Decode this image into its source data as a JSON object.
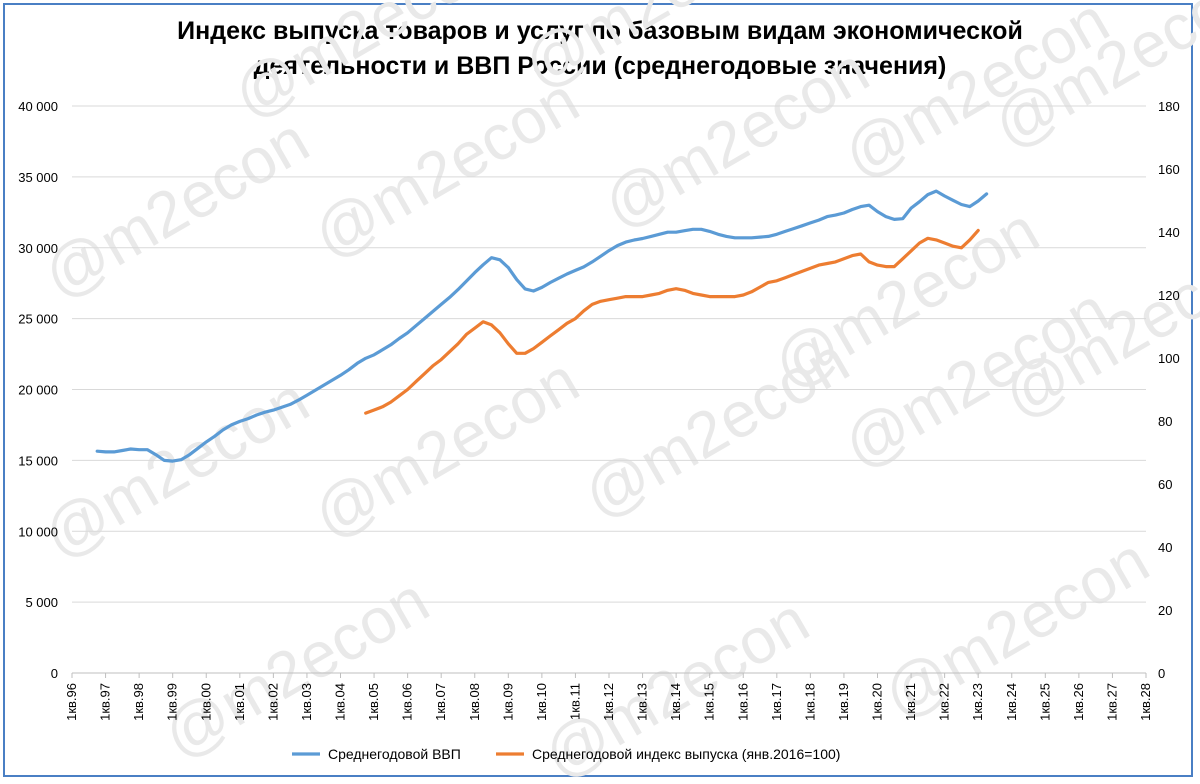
{
  "chart_data": {
    "type": "line",
    "title_line1": "Индекс выпуска товаров и услуг по базовым видам экономической",
    "title_line2": "деятельности и ВВП России (среднегодовые значения)",
    "watermark": "@m2econ",
    "y_left": {
      "ticks": [
        "0",
        "5 000",
        "10 000",
        "15 000",
        "20 000",
        "25 000",
        "30 000",
        "35 000",
        "40 000"
      ],
      "ylim": [
        0,
        40000
      ]
    },
    "y_right": {
      "ticks": [
        "0",
        "20",
        "40",
        "60",
        "80",
        "100",
        "120",
        "140",
        "160",
        "180"
      ],
      "ylim": [
        0,
        180
      ]
    },
    "x_categories": [
      "1кв.96",
      "1кв.97",
      "1кв.98",
      "1кв.99",
      "1кв.00",
      "1кв.01",
      "1кв.02",
      "1кв.03",
      "1кв.04",
      "1кв.05",
      "1кв.06",
      "1кв.07",
      "1кв.08",
      "1кв.09",
      "1кв.10",
      "1кв.11",
      "1кв.12",
      "1кв.13",
      "1кв.14",
      "1кв.15",
      "1кв.16",
      "1кв.17",
      "1кв.18",
      "1кв.19",
      "1кв.20",
      "1кв.21",
      "1кв.22",
      "1кв.23",
      "1кв.24",
      "1кв.25",
      "1кв.26",
      "1кв.27",
      "1кв.28"
    ],
    "grid": true,
    "legend_position": "bottom",
    "series": [
      {
        "name": "Среднегодовой ВВП",
        "axis": "left",
        "color": "#5b9bd5",
        "points": [
          [
            1996.75,
            15650
          ],
          [
            1997.0,
            15600
          ],
          [
            1997.25,
            15600
          ],
          [
            1997.5,
            15700
          ],
          [
            1997.75,
            15800
          ],
          [
            1998.0,
            15750
          ],
          [
            1998.25,
            15750
          ],
          [
            1998.5,
            15400
          ],
          [
            1998.75,
            15000
          ],
          [
            1999.0,
            14950
          ],
          [
            1999.25,
            15050
          ],
          [
            1999.5,
            15400
          ],
          [
            1999.75,
            15850
          ],
          [
            2000.0,
            16300
          ],
          [
            2000.25,
            16700
          ],
          [
            2000.5,
            17150
          ],
          [
            2000.75,
            17500
          ],
          [
            2001.0,
            17750
          ],
          [
            2001.25,
            17950
          ],
          [
            2001.5,
            18200
          ],
          [
            2001.75,
            18400
          ],
          [
            2002.0,
            18550
          ],
          [
            2002.25,
            18750
          ],
          [
            2002.5,
            18950
          ],
          [
            2002.75,
            19250
          ],
          [
            2003.0,
            19600
          ],
          [
            2003.25,
            19950
          ],
          [
            2003.5,
            20300
          ],
          [
            2003.75,
            20650
          ],
          [
            2004.0,
            21000
          ],
          [
            2004.25,
            21400
          ],
          [
            2004.5,
            21850
          ],
          [
            2004.75,
            22200
          ],
          [
            2005.0,
            22450
          ],
          [
            2005.25,
            22800
          ],
          [
            2005.5,
            23150
          ],
          [
            2005.75,
            23600
          ],
          [
            2006.0,
            24000
          ],
          [
            2006.25,
            24500
          ],
          [
            2006.5,
            25000
          ],
          [
            2006.75,
            25500
          ],
          [
            2007.0,
            26000
          ],
          [
            2007.25,
            26500
          ],
          [
            2007.5,
            27050
          ],
          [
            2007.75,
            27650
          ],
          [
            2008.0,
            28250
          ],
          [
            2008.25,
            28800
          ],
          [
            2008.5,
            29300
          ],
          [
            2008.75,
            29150
          ],
          [
            2009.0,
            28600
          ],
          [
            2009.25,
            27750
          ],
          [
            2009.5,
            27100
          ],
          [
            2009.75,
            26950
          ],
          [
            2010.0,
            27200
          ],
          [
            2010.25,
            27550
          ],
          [
            2010.5,
            27850
          ],
          [
            2010.75,
            28150
          ],
          [
            2011.0,
            28400
          ],
          [
            2011.25,
            28650
          ],
          [
            2011.5,
            29000
          ],
          [
            2011.75,
            29400
          ],
          [
            2012.0,
            29800
          ],
          [
            2012.25,
            30150
          ],
          [
            2012.5,
            30400
          ],
          [
            2012.75,
            30550
          ],
          [
            2013.0,
            30650
          ],
          [
            2013.25,
            30800
          ],
          [
            2013.5,
            30950
          ],
          [
            2013.75,
            31100
          ],
          [
            2014.0,
            31100
          ],
          [
            2014.25,
            31200
          ],
          [
            2014.5,
            31300
          ],
          [
            2014.75,
            31300
          ],
          [
            2015.0,
            31150
          ],
          [
            2015.25,
            30950
          ],
          [
            2015.5,
            30800
          ],
          [
            2015.75,
            30700
          ],
          [
            2016.0,
            30700
          ],
          [
            2016.25,
            30700
          ],
          [
            2016.5,
            30750
          ],
          [
            2016.75,
            30800
          ],
          [
            2017.0,
            30950
          ],
          [
            2017.25,
            31150
          ],
          [
            2017.5,
            31350
          ],
          [
            2017.75,
            31550
          ],
          [
            2018.0,
            31750
          ],
          [
            2018.25,
            31950
          ],
          [
            2018.5,
            32200
          ],
          [
            2018.75,
            32300
          ],
          [
            2019.0,
            32450
          ],
          [
            2019.25,
            32700
          ],
          [
            2019.5,
            32900
          ],
          [
            2019.75,
            33000
          ],
          [
            2020.0,
            32550
          ],
          [
            2020.25,
            32200
          ],
          [
            2020.5,
            32000
          ],
          [
            2020.75,
            32050
          ],
          [
            2021.0,
            32800
          ],
          [
            2021.25,
            33250
          ],
          [
            2021.5,
            33750
          ],
          [
            2021.75,
            34000
          ],
          [
            2022.0,
            33650
          ],
          [
            2022.25,
            33350
          ],
          [
            2022.5,
            33050
          ],
          [
            2022.75,
            32900
          ],
          [
            2023.0,
            33300
          ],
          [
            2023.25,
            33800
          ]
        ]
      },
      {
        "name": "Среднегодовой индекс выпуска (янв.2016=100)",
        "axis": "right",
        "color": "#ed7d31",
        "points": [
          [
            2004.75,
            82.5
          ],
          [
            2005.0,
            83.5
          ],
          [
            2005.25,
            84.5
          ],
          [
            2005.5,
            86.0
          ],
          [
            2005.75,
            88.0
          ],
          [
            2006.0,
            90.0
          ],
          [
            2006.25,
            92.5
          ],
          [
            2006.5,
            95.0
          ],
          [
            2006.75,
            97.5
          ],
          [
            2007.0,
            99.5
          ],
          [
            2007.25,
            102.0
          ],
          [
            2007.5,
            104.5
          ],
          [
            2007.75,
            107.5
          ],
          [
            2008.0,
            109.5
          ],
          [
            2008.25,
            111.5
          ],
          [
            2008.5,
            110.5
          ],
          [
            2008.75,
            108.0
          ],
          [
            2009.0,
            104.5
          ],
          [
            2009.25,
            101.5
          ],
          [
            2009.5,
            101.5
          ],
          [
            2009.75,
            103.0
          ],
          [
            2010.0,
            105.0
          ],
          [
            2010.25,
            107.0
          ],
          [
            2010.5,
            109.0
          ],
          [
            2010.75,
            111.0
          ],
          [
            2011.0,
            112.5
          ],
          [
            2011.25,
            115.0
          ],
          [
            2011.5,
            117.0
          ],
          [
            2011.75,
            118.0
          ],
          [
            2012.0,
            118.5
          ],
          [
            2012.25,
            119.0
          ],
          [
            2012.5,
            119.5
          ],
          [
            2012.75,
            119.5
          ],
          [
            2013.0,
            119.5
          ],
          [
            2013.25,
            120.0
          ],
          [
            2013.5,
            120.5
          ],
          [
            2013.75,
            121.5
          ],
          [
            2014.0,
            122.0
          ],
          [
            2014.25,
            121.5
          ],
          [
            2014.5,
            120.5
          ],
          [
            2014.75,
            120.0
          ],
          [
            2015.0,
            119.5
          ],
          [
            2015.25,
            119.5
          ],
          [
            2015.5,
            119.5
          ],
          [
            2015.75,
            119.5
          ],
          [
            2016.0,
            120.0
          ],
          [
            2016.25,
            121.0
          ],
          [
            2016.5,
            122.5
          ],
          [
            2016.75,
            124.0
          ],
          [
            2017.0,
            124.5
          ],
          [
            2017.25,
            125.5
          ],
          [
            2017.5,
            126.5
          ],
          [
            2017.75,
            127.5
          ],
          [
            2018.0,
            128.5
          ],
          [
            2018.25,
            129.5
          ],
          [
            2018.5,
            130.0
          ],
          [
            2018.75,
            130.5
          ],
          [
            2019.0,
            131.5
          ],
          [
            2019.25,
            132.5
          ],
          [
            2019.5,
            133.0
          ],
          [
            2019.75,
            130.5
          ],
          [
            2020.0,
            129.5
          ],
          [
            2020.25,
            129.0
          ],
          [
            2020.5,
            129.0
          ],
          [
            2020.75,
            131.5
          ],
          [
            2021.0,
            134.0
          ],
          [
            2021.25,
            136.5
          ],
          [
            2021.5,
            138.0
          ],
          [
            2021.75,
            137.5
          ],
          [
            2022.0,
            136.5
          ],
          [
            2022.25,
            135.5
          ],
          [
            2022.5,
            135.0
          ],
          [
            2022.75,
            137.5
          ],
          [
            2023.0,
            140.5
          ]
        ]
      }
    ]
  }
}
